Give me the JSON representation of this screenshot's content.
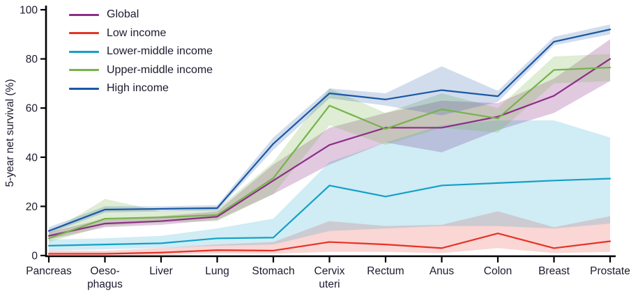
{
  "accent_colors": {
    "text": "#1b1b2f",
    "axis": "#000000"
  },
  "legend": {
    "items": [
      {
        "key": "global",
        "label": "Global",
        "color": "#8c2e87"
      },
      {
        "key": "low-income",
        "label": "Low income",
        "color": "#e43327"
      },
      {
        "key": "lower-middle-income",
        "label": "Lower-middle income",
        "color": "#13a0c8"
      },
      {
        "key": "upper-middle-income",
        "label": "Upper-middle income",
        "color": "#76b34a"
      },
      {
        "key": "high-income",
        "label": "High income",
        "color": "#1a57a4"
      }
    ]
  },
  "y_axis": {
    "title": "5-year net survival (%)",
    "ticks": [
      0,
      20,
      40,
      60,
      80,
      100
    ]
  },
  "x_axis": {
    "labels": [
      [
        "Pancreas"
      ],
      [
        "Oeso-",
        "phagus"
      ],
      [
        "Liver"
      ],
      [
        "Lung"
      ],
      [
        "Stomach"
      ],
      [
        "Cervix",
        "uteri"
      ],
      [
        "Rectum"
      ],
      [
        "Anus"
      ],
      [
        "Colon"
      ],
      [
        "Breast"
      ],
      [
        "Prostate"
      ]
    ]
  },
  "chart_data": {
    "type": "line",
    "title": "",
    "xlabel": "",
    "ylabel": "5-year net survival (%)",
    "ylim": [
      0,
      100
    ],
    "grid": false,
    "legend_position": "top-left",
    "categories": [
      "Pancreas",
      "Oesophagus",
      "Liver",
      "Lung",
      "Stomach",
      "Cervix uteri",
      "Rectum",
      "Anus",
      "Colon",
      "Breast",
      "Prostate"
    ],
    "series": [
      {
        "name": "Global",
        "key": "global",
        "color": "#8c2e87",
        "band_opacity": 0.26,
        "values": [
          8,
          13,
          14,
          15.8,
          30.5,
          45,
          52,
          52,
          56.5,
          65,
          80
        ],
        "band_lower": [
          6.5,
          11.5,
          12.5,
          14.5,
          25,
          37,
          46,
          42,
          51,
          58,
          71
        ],
        "band_upper": [
          9.5,
          15,
          16,
          18,
          37,
          52,
          58,
          63,
          62,
          72,
          88
        ]
      },
      {
        "name": "Low income",
        "key": "low-income",
        "color": "#e43327",
        "band_opacity": 0.2,
        "values": [
          0.7,
          0.7,
          1.2,
          2.2,
          2,
          5.5,
          4.5,
          3,
          9,
          3,
          5.8
        ],
        "band_lower": [
          0.2,
          0.2,
          0.3,
          0.8,
          0.7,
          1.5,
          1.5,
          1,
          3,
          1,
          1.5
        ],
        "band_upper": [
          2,
          2,
          3,
          4.5,
          5.5,
          14,
          12,
          12.5,
          18,
          11.5,
          16
        ]
      },
      {
        "name": "Lower-middle income",
        "key": "lower-middle-income",
        "color": "#13a0c8",
        "band_opacity": 0.2,
        "values": [
          4,
          4.5,
          5,
          7,
          7.3,
          28.5,
          24,
          28.5,
          29.5,
          30.5,
          31.3
        ],
        "band_lower": [
          2,
          2.5,
          3,
          4,
          4.5,
          10,
          11,
          12,
          12,
          11,
          13
        ],
        "band_upper": [
          6.5,
          7,
          8,
          11,
          15,
          38,
          46,
          53,
          55,
          55,
          48
        ]
      },
      {
        "name": "Upper-middle income",
        "key": "upper-middle-income",
        "color": "#76b34a",
        "band_opacity": 0.24,
        "values": [
          7,
          15,
          15.5,
          16.5,
          31.5,
          61,
          51.5,
          59.5,
          55.8,
          75.5,
          76.5
        ],
        "band_lower": [
          5.5,
          12,
          13.5,
          14,
          25,
          53,
          45,
          52,
          50,
          70,
          71
        ],
        "band_upper": [
          9,
          23,
          18,
          19,
          38,
          68,
          58,
          66,
          60,
          81,
          82
        ]
      },
      {
        "name": "High income",
        "key": "high-income",
        "color": "#1a57a4",
        "band_opacity": 0.2,
        "values": [
          10,
          18.7,
          19,
          19.3,
          45.5,
          66,
          63.5,
          67.3,
          64.8,
          87,
          92
        ],
        "band_lower": [
          9,
          17.5,
          18,
          18.3,
          43,
          64,
          61,
          57,
          62.5,
          85.5,
          90
        ],
        "band_upper": [
          11.5,
          20,
          20,
          20.5,
          48,
          68,
          66,
          77,
          67,
          89,
          94
        ]
      }
    ]
  }
}
